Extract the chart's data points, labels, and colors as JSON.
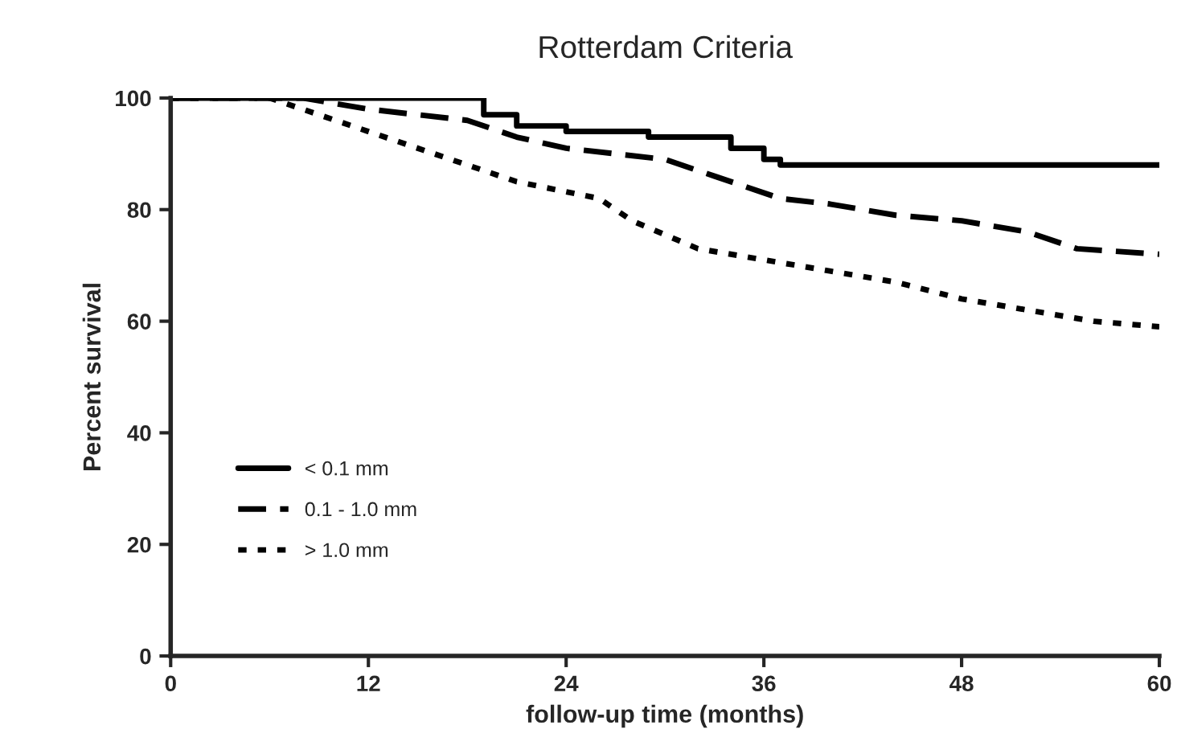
{
  "chart_data": {
    "type": "line",
    "title": "Rotterdam Criteria",
    "xlabel": "follow-up time (months)",
    "ylabel": "Percent survival",
    "xlim": [
      0,
      60
    ],
    "xticks": [
      0,
      12,
      24,
      36,
      48,
      60
    ],
    "ylim": [
      0,
      100
    ],
    "yticks": [
      0,
      20,
      40,
      60,
      80,
      100
    ],
    "grid": false,
    "legend": "left",
    "marker": "none",
    "series": [
      {
        "name": "< 0.1 mm",
        "color": "#000000",
        "line_style": "solid",
        "type": "step",
        "x": [
          0,
          18,
          19,
          21,
          24,
          29,
          34,
          36,
          37,
          60
        ],
        "values": [
          100,
          100,
          97,
          95,
          94,
          93,
          91,
          89,
          88,
          88
        ]
      },
      {
        "name": "0.1 - 1.0 mm",
        "color": "#000000",
        "line_style": "dashed",
        "x": [
          0,
          8,
          12,
          18,
          21,
          24,
          30,
          33,
          37,
          40,
          44,
          48,
          52,
          55,
          60
        ],
        "values": [
          100,
          100,
          98,
          96,
          93,
          91,
          89,
          86,
          82,
          81,
          79,
          78,
          76,
          73,
          72
        ]
      },
      {
        "name": "> 1.0 mm",
        "color": "#000000",
        "line_style": "dotted",
        "x": [
          0,
          6,
          8,
          12,
          17,
          21,
          26,
          28,
          32,
          36,
          40,
          44,
          48,
          52,
          56,
          60
        ],
        "values": [
          100,
          100,
          98,
          94,
          89,
          85,
          82,
          78,
          73,
          71,
          69,
          67,
          64,
          62,
          60,
          59
        ]
      }
    ]
  }
}
